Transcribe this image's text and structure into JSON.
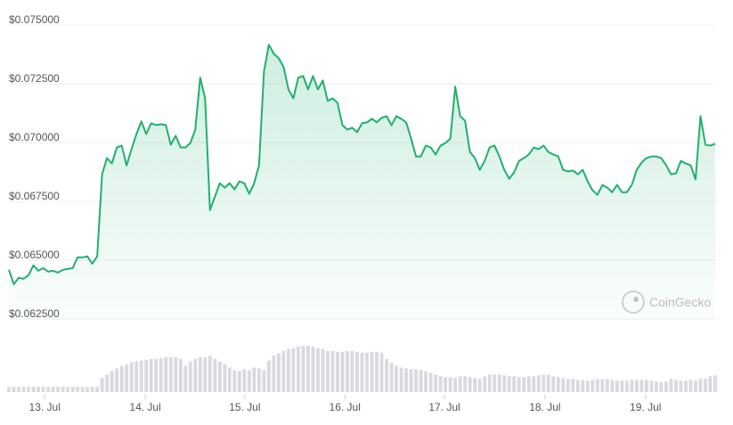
{
  "chart_data": {
    "type": "line",
    "watermark": "CoinGecko",
    "color": "#1fb070",
    "volume_color": "#d9d9df",
    "grid": true,
    "xlim": [
      0,
      144
    ],
    "xticks": [
      {
        "value": 7.3,
        "label": "13. Jul"
      },
      {
        "value": 27.8,
        "label": "14. Jul"
      },
      {
        "value": 48.1,
        "label": "15. Jul"
      },
      {
        "value": 68.5,
        "label": "16. Jul"
      },
      {
        "value": 88.8,
        "label": "17. Jul"
      },
      {
        "value": 109.3,
        "label": "18. Jul"
      },
      {
        "value": 129.8,
        "label": "19. Jul"
      }
    ],
    "ylim": [
      0.0625,
      0.075
    ],
    "yticks": [
      {
        "value": 0.075,
        "label": "$0.075000"
      },
      {
        "value": 0.0725,
        "label": "$0.072500"
      },
      {
        "value": 0.07,
        "label": "$0.070000"
      },
      {
        "value": 0.0675,
        "label": "$0.067500"
      },
      {
        "value": 0.065,
        "label": "$0.065000"
      },
      {
        "value": 0.0625,
        "label": "$0.062500"
      }
    ],
    "values": [
      0.06459,
      0.06398,
      0.06425,
      0.06421,
      0.06436,
      0.06478,
      0.06455,
      0.06466,
      0.06451,
      0.06455,
      0.06447,
      0.06459,
      0.06463,
      0.06466,
      0.06512,
      0.06512,
      0.06516,
      0.06485,
      0.06516,
      0.06865,
      0.06934,
      0.06911,
      0.06979,
      0.06987,
      0.06903,
      0.06972,
      0.07036,
      0.0709,
      0.07036,
      0.07082,
      0.07074,
      0.07078,
      0.07074,
      0.06991,
      0.07029,
      0.06979,
      0.06979,
      0.06998,
      0.07055,
      0.07276,
      0.07188,
      0.06713,
      0.0677,
      0.06827,
      0.06808,
      0.06827,
      0.06801,
      0.06835,
      0.06827,
      0.06782,
      0.06827,
      0.06903,
      0.07302,
      0.07416,
      0.07378,
      0.07359,
      0.07321,
      0.07226,
      0.07188,
      0.07276,
      0.07283,
      0.07226,
      0.07283,
      0.07226,
      0.07264,
      0.07177,
      0.07188,
      0.07169,
      0.07074,
      0.07055,
      0.07063,
      0.07044,
      0.07082,
      0.07086,
      0.07101,
      0.07086,
      0.07105,
      0.07112,
      0.07074,
      0.07112,
      0.07101,
      0.07086,
      0.07017,
      0.06941,
      0.06941,
      0.06987,
      0.06979,
      0.06949,
      0.06987,
      0.06998,
      0.07017,
      0.07238,
      0.07112,
      0.07093,
      0.0696,
      0.06934,
      0.06884,
      0.06922,
      0.06979,
      0.06987,
      0.06941,
      0.06884,
      0.06846,
      0.06873,
      0.06922,
      0.06934,
      0.06949,
      0.06979,
      0.06972,
      0.06987,
      0.0696,
      0.06949,
      0.06941,
      0.06884,
      0.06877,
      0.06881,
      0.06865,
      0.06884,
      0.06835,
      0.06797,
      0.06778,
      0.0682,
      0.06808,
      0.06789,
      0.0682,
      0.06789,
      0.06789,
      0.0682,
      0.06884,
      0.06915,
      0.06934,
      0.06941,
      0.06941,
      0.06934,
      0.06903,
      0.06865,
      0.06869,
      0.06922,
      0.06911,
      0.06903,
      0.06843,
      0.07112,
      0.06991,
      0.06987,
      0.06995
    ],
    "volume": [
      6,
      6,
      6,
      6,
      6,
      6,
      6,
      6,
      6,
      6,
      6,
      6,
      6,
      6,
      6,
      6,
      6,
      6,
      6,
      16,
      20,
      24,
      27,
      30,
      32,
      34,
      35,
      36,
      37,
      38,
      38,
      39,
      40,
      40,
      40,
      38,
      30,
      35,
      38,
      40,
      40,
      41,
      38,
      35,
      32,
      28,
      25,
      24,
      26,
      25,
      28,
      27,
      25,
      36,
      42,
      44,
      47,
      49,
      50,
      52,
      53,
      53,
      52,
      50,
      49,
      47,
      47,
      46,
      46,
      47,
      47,
      46,
      45,
      45,
      46,
      46,
      45,
      38,
      33,
      30,
      28,
      27,
      26,
      26,
      25,
      24,
      22,
      20,
      18,
      17,
      17,
      16,
      18,
      18,
      17,
      16,
      15,
      18,
      20,
      20,
      20,
      19,
      18,
      18,
      17,
      17,
      18,
      18,
      19,
      20,
      20,
      18,
      17,
      16,
      15,
      15,
      14,
      14,
      13,
      14,
      15,
      15,
      15,
      14,
      13,
      13,
      13,
      14,
      14,
      14,
      14,
      13,
      12,
      11,
      12,
      15,
      14,
      13,
      13,
      14,
      13,
      15,
      15,
      18,
      19
    ]
  }
}
